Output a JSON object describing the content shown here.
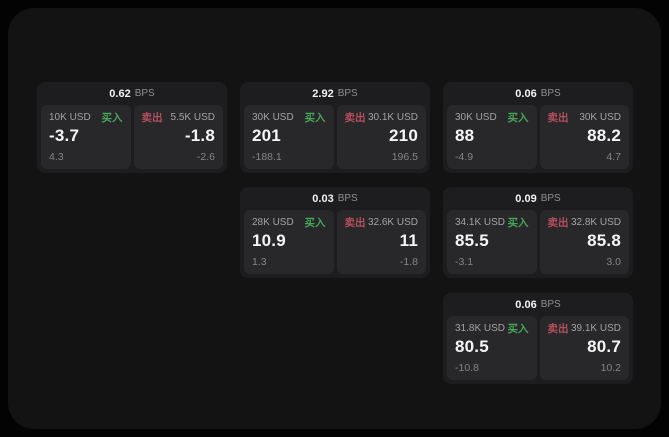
{
  "labels": {
    "bps": "BPS",
    "buy": "买入",
    "sell": "卖出"
  },
  "colors": {
    "page_bg": "#030303",
    "window_bg": "#131314",
    "card_bg": "#1d1d1f",
    "panel_bg": "#28282a",
    "text_primary": "#f5f5f5",
    "text_secondary": "#a3a3a3",
    "text_dim": "#858585",
    "buy_green": "#47a55b",
    "sell_red": "#b44f5c"
  },
  "cards": [
    {
      "bps": "0.62",
      "buy": {
        "amount": "10K USD",
        "value": "-3.7",
        "sub": "4.3"
      },
      "sell": {
        "amount": "5.5K USD",
        "value": "-1.8",
        "sub": "-2.6"
      }
    },
    {
      "bps": "2.92",
      "buy": {
        "amount": "30K USD",
        "value": "201",
        "sub": "-188.1"
      },
      "sell": {
        "amount": "30.1K USD",
        "value": "210",
        "sub": "196.5"
      }
    },
    {
      "bps": "0.06",
      "buy": {
        "amount": "30K USD",
        "value": "88",
        "sub": "-4.9"
      },
      "sell": {
        "amount": "30K USD",
        "value": "88.2",
        "sub": "4.7"
      }
    },
    {
      "bps": "0.03",
      "buy": {
        "amount": "28K USD",
        "value": "10.9",
        "sub": "1.3"
      },
      "sell": {
        "amount": "32.6K USD",
        "value": "11",
        "sub": "-1.8"
      }
    },
    {
      "bps": "0.09",
      "buy": {
        "amount": "34.1K USD",
        "value": "85.5",
        "sub": "-3.1"
      },
      "sell": {
        "amount": "32.8K USD",
        "value": "85.8",
        "sub": "3.0"
      }
    },
    {
      "bps": "0.06",
      "buy": {
        "amount": "31.8K USD",
        "value": "80.5",
        "sub": "-10.8"
      },
      "sell": {
        "amount": "39.1K USD",
        "value": "80.7",
        "sub": "10.2"
      }
    }
  ]
}
